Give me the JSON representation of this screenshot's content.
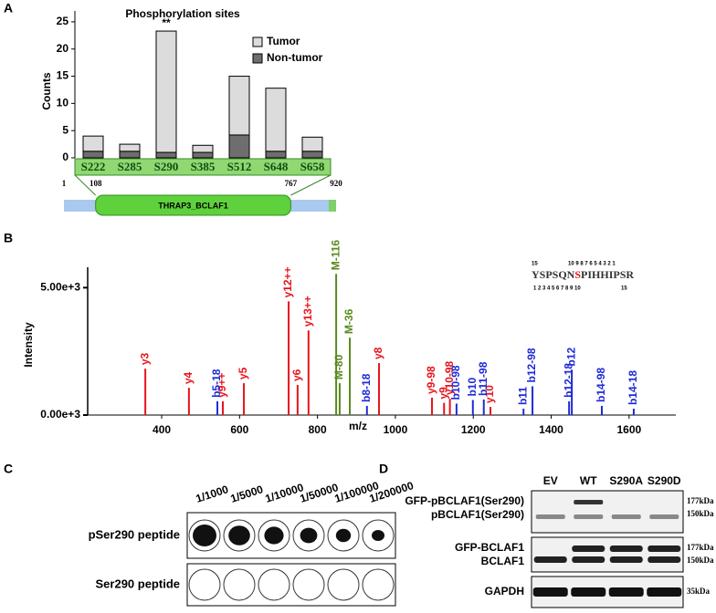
{
  "panels": [
    "A",
    "B",
    "C",
    "D"
  ],
  "chart_data": [
    {
      "type": "bar",
      "title": "Phosphorylation sites",
      "y_label": "Counts",
      "categories": [
        "S222",
        "S285",
        "S290",
        "S385",
        "S512",
        "S648",
        "S658"
      ],
      "series": [
        {
          "name": "Tumor",
          "color": "#dcdcdc",
          "values": [
            2.8,
            1.3,
            22.3,
            1.3,
            10.8,
            11.6,
            2.6
          ]
        },
        {
          "name": "Non-tumor",
          "color": "#6e6e6e",
          "values": [
            1.2,
            1.2,
            1.0,
            1.0,
            4.2,
            1.2,
            1.2
          ]
        }
      ],
      "stacked": true,
      "ylim": [
        0,
        27
      ],
      "yticks": [
        0,
        5,
        10,
        15,
        20,
        25
      ],
      "annotations": [
        {
          "text": "**",
          "category": "S290"
        }
      ],
      "domain": {
        "positions": [
          1,
          108,
          767,
          920
        ],
        "label": "THRAP3_BCLAF1"
      }
    },
    {
      "type": "spectrum",
      "x_label": "m/z",
      "y_label": "Intensity",
      "series": [
        {
          "color": "#e8141b",
          "labels": [
            "y3",
            "y4",
            "y9++",
            "y5",
            "y12++",
            "y6",
            "y13++",
            "y8",
            "y9-98",
            "y9",
            "y10-98",
            "y10"
          ],
          "x": [
            358,
            470,
            557,
            611,
            726,
            749,
            777,
            958,
            1094,
            1125,
            1140,
            1244
          ],
          "values": [
            1820,
            1070,
            540,
            1250,
            4460,
            1180,
            3320,
            2040,
            680,
            480,
            640,
            320
          ]
        },
        {
          "color": "#1f2bd6",
          "labels": [
            "b5-18",
            "b8-18",
            "b10-98",
            "b10",
            "b11-98",
            "b11",
            "b12-98",
            "b12-18",
            "b12",
            "b14-98",
            "b14-18"
          ],
          "x": [
            543,
            927,
            1157,
            1199,
            1227,
            1329,
            1352,
            1446,
            1453,
            1530,
            1612
          ],
          "values": [
            540,
            360,
            450,
            590,
            610,
            250,
            1130,
            540,
            1770,
            360,
            250
          ]
        },
        {
          "color": "#5a8a1e",
          "labels": [
            "M-116",
            "M-80",
            "M-36"
          ],
          "x": [
            848,
            857,
            883
          ],
          "values": [
            5540,
            1250,
            3040
          ]
        }
      ],
      "xlim": [
        210,
        1720
      ],
      "xticks": [
        400,
        600,
        800,
        1000,
        1200,
        1400,
        1600
      ],
      "ylim": [
        0,
        5800
      ],
      "yticks": [
        {
          "value": 0,
          "label": "0.00e+3"
        },
        {
          "value": 5000,
          "label": "5.00e+3"
        }
      ],
      "sequence": {
        "top": [
          "15",
          "10 9 8 7 6 5 4 3 2 1"
        ],
        "parts": [
          "YSPSQN",
          "S",
          "PIHHIPSR"
        ],
        "bottom": [
          "1 2 3 4 5 6 7 8 9 10",
          "15"
        ]
      }
    }
  ],
  "dot_blot": {
    "dilutions": [
      "1/1000",
      "1/5000",
      "1/10000",
      "1/50000",
      "1/100000",
      "1/200000"
    ],
    "rows": [
      "pSer290 peptide",
      "Ser290 peptide"
    ]
  },
  "western": {
    "lanes": [
      "EV",
      "WT",
      "S290A",
      "S290D"
    ],
    "blots": [
      {
        "labels": [
          "GFP-pBCLAF1(Ser290)",
          "pBCLAF1(Ser290)"
        ],
        "markers": [
          "177kDa",
          "150kDa"
        ]
      },
      {
        "labels": [
          "GFP-BCLAF1",
          "BCLAF1"
        ],
        "markers": [
          "177kDa",
          "150kDa"
        ]
      },
      {
        "labels": [
          "GAPDH"
        ],
        "markers": [
          "35kDa"
        ]
      }
    ]
  }
}
